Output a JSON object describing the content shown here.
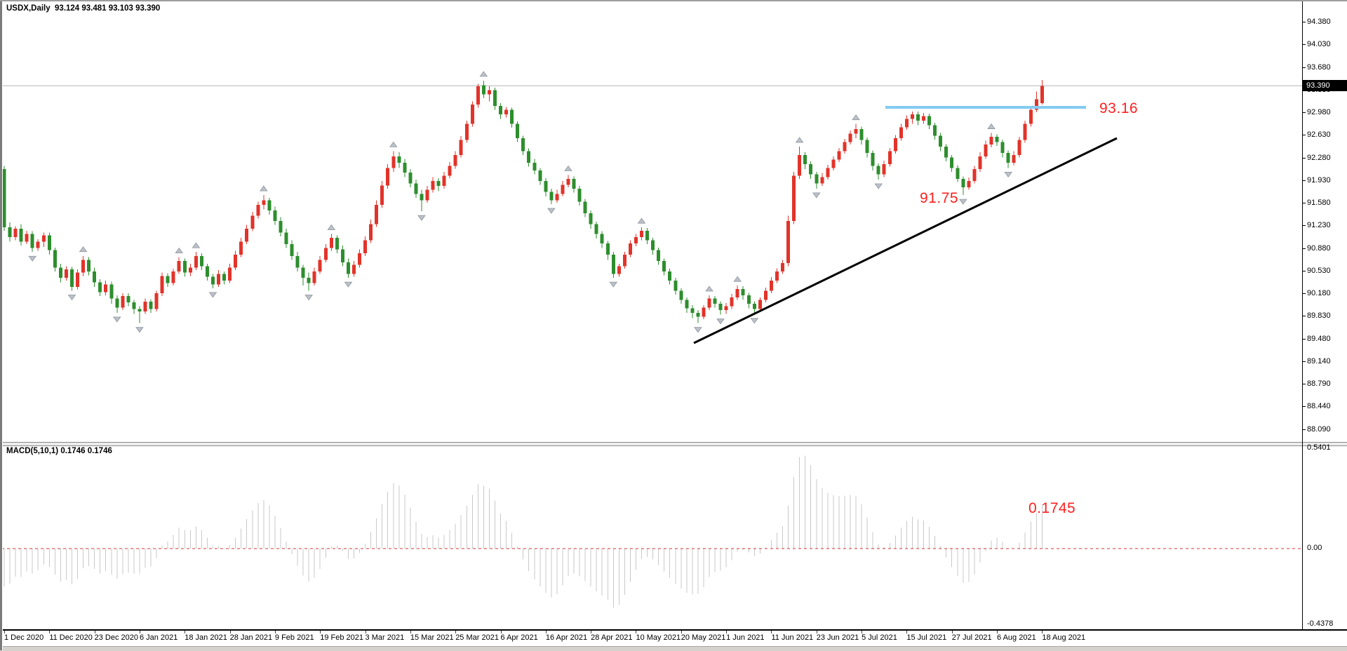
{
  "window": {
    "info_line": "USDX,Daily  93.124 93.481 93.103 93.390",
    "symbol": "USDX",
    "timeframe": "Daily"
  },
  "main_chart": {
    "ohlc_readout": {
      "open": "93.124",
      "high": "93.481",
      "low": "93.103",
      "close": "93.390"
    },
    "price_axis_labels": [
      "94.380",
      "94.030",
      "93.680",
      "93.330",
      "92.980",
      "92.630",
      "92.280",
      "91.930",
      "91.580",
      "91.230",
      "90.880",
      "90.530",
      "90.180",
      "89.830",
      "89.480",
      "89.140",
      "88.790",
      "88.440",
      "88.090"
    ],
    "current_price_label": "93.390",
    "annotations": {
      "resistance_label": "93.16",
      "support_label": "91.75"
    },
    "colors": {
      "bull_candle": "#e2332a",
      "bear_candle": "#2d8e2d",
      "resistance_line": "#84cbf1",
      "trendline": "#000000",
      "current_price_line": "#b6b6b6",
      "annotation_text": "#fe1f1f",
      "fractal_arrow": "#bcc1c9"
    }
  },
  "macd_panel": {
    "indicator_label": "MACD(5,10,1) 0.1746 0.1746",
    "value_annotation": "0.1745",
    "axis_labels": [
      "0.5401",
      "0.00",
      "-0.4378"
    ],
    "histogram_color": "#c9c9c9",
    "zero_line_color": "#d63434"
  },
  "chart_data": {
    "type": "candlestick",
    "title": "USDX Daily with MACD(5,10,1)",
    "symbol": "USDX",
    "timeframe": "Daily",
    "price_axis_range": [
      88.09,
      94.38
    ],
    "grid": "off",
    "last_candle_ohlc": [
      93.124,
      93.481,
      93.103,
      93.39
    ],
    "overlays": {
      "horizontal_resistance_level": 93.16,
      "support_annotation_value": 91.75,
      "current_price": 93.39,
      "ascending_trendline": "from below late-May 2021 swing low (~89.4) rising to ~92.7 by mid-Aug 2021"
    },
    "macd": {
      "params": [
        5,
        10,
        1
      ],
      "current_value": 0.1746,
      "signal_value": 0.1746,
      "panel_annotation": 0.1745,
      "axis_max": 0.5401,
      "axis_min": -0.4378,
      "derivation": "EMA5(close) - EMA10(close), histogram"
    },
    "date_ticks_every_n_candles": 8,
    "dates": [
      "1 Dec 2020",
      "11 Dec 2020",
      "23 Dec 2020",
      "6 Jan 2021",
      "18 Jan 2021",
      "28 Jan 2021",
      "9 Feb 2021",
      "19 Feb 2021",
      "3 Mar 2021",
      "15 Mar 2021",
      "25 Mar 2021",
      "6 Apr 2021",
      "16 Apr 2021",
      "28 Apr 2021",
      "10 May 2021",
      "20 May 2021",
      "1 Jun 2021",
      "11 Jun 2021",
      "23 Jun 2021",
      "5 Jul 2021",
      "15 Jul 2021",
      "27 Jul 2021",
      "6 Aug 2021",
      "18 Aug 2021"
    ],
    "candles_format": [
      "open",
      "high",
      "low",
      "close"
    ],
    "candles": [
      [
        92.1,
        92.15,
        91.15,
        91.2
      ],
      [
        91.2,
        91.28,
        90.98,
        91.05
      ],
      [
        91.05,
        91.22,
        91.0,
        91.18
      ],
      [
        91.18,
        91.25,
        90.92,
        90.98
      ],
      [
        90.98,
        91.15,
        90.94,
        91.1
      ],
      [
        91.1,
        91.14,
        90.82,
        90.88
      ],
      [
        90.88,
        91.02,
        90.84,
        90.98
      ],
      [
        90.98,
        91.12,
        90.9,
        91.08
      ],
      [
        91.08,
        91.12,
        90.78,
        90.85
      ],
      [
        90.85,
        90.89,
        90.52,
        90.58
      ],
      [
        90.58,
        90.64,
        90.35,
        90.42
      ],
      [
        90.42,
        90.6,
        90.38,
        90.55
      ],
      [
        90.55,
        90.59,
        90.22,
        90.28
      ],
      [
        90.28,
        90.55,
        90.24,
        90.5
      ],
      [
        90.5,
        90.76,
        90.45,
        90.7
      ],
      [
        90.7,
        90.74,
        90.46,
        90.52
      ],
      [
        90.52,
        90.58,
        90.28,
        90.35
      ],
      [
        90.35,
        90.4,
        90.14,
        90.2
      ],
      [
        90.2,
        90.38,
        90.15,
        90.32
      ],
      [
        90.32,
        90.36,
        90.02,
        90.1
      ],
      [
        90.1,
        90.15,
        89.88,
        89.96
      ],
      [
        89.96,
        90.18,
        89.92,
        90.14
      ],
      [
        90.14,
        90.18,
        89.98,
        90.04
      ],
      [
        90.04,
        90.08,
        89.86,
        89.94
      ],
      [
        89.94,
        89.98,
        89.72,
        89.9
      ],
      [
        89.9,
        90.1,
        89.86,
        90.05
      ],
      [
        90.05,
        90.09,
        89.88,
        89.94
      ],
      [
        89.94,
        90.22,
        89.9,
        90.18
      ],
      [
        90.18,
        90.5,
        90.14,
        90.45
      ],
      [
        90.45,
        90.49,
        90.28,
        90.34
      ],
      [
        90.34,
        90.56,
        90.3,
        90.52
      ],
      [
        90.52,
        90.74,
        90.48,
        90.68
      ],
      [
        90.68,
        90.72,
        90.44,
        90.5
      ],
      [
        90.5,
        90.64,
        90.45,
        90.58
      ],
      [
        90.58,
        90.82,
        90.54,
        90.76
      ],
      [
        90.76,
        90.8,
        90.54,
        90.6
      ],
      [
        90.6,
        90.64,
        90.38,
        90.44
      ],
      [
        90.44,
        90.48,
        90.26,
        90.32
      ],
      [
        90.32,
        90.54,
        90.28,
        90.48
      ],
      [
        90.48,
        90.52,
        90.32,
        90.38
      ],
      [
        90.38,
        90.64,
        90.34,
        90.58
      ],
      [
        90.58,
        90.84,
        90.54,
        90.78
      ],
      [
        90.78,
        91.04,
        90.74,
        90.98
      ],
      [
        90.98,
        91.24,
        90.94,
        91.18
      ],
      [
        91.18,
        91.44,
        91.14,
        91.38
      ],
      [
        91.38,
        91.6,
        91.34,
        91.55
      ],
      [
        91.55,
        91.7,
        91.48,
        91.62
      ],
      [
        91.62,
        91.66,
        91.4,
        91.46
      ],
      [
        91.46,
        91.52,
        91.24,
        91.3
      ],
      [
        91.3,
        91.36,
        91.06,
        91.12
      ],
      [
        91.12,
        91.18,
        90.88,
        90.94
      ],
      [
        90.94,
        91.0,
        90.7,
        90.76
      ],
      [
        90.76,
        90.82,
        90.52,
        90.58
      ],
      [
        90.58,
        90.62,
        90.3,
        90.42
      ],
      [
        90.42,
        90.5,
        90.22,
        90.34
      ],
      [
        90.34,
        90.58,
        90.3,
        90.52
      ],
      [
        90.52,
        90.76,
        90.48,
        90.7
      ],
      [
        90.7,
        90.94,
        90.66,
        90.88
      ],
      [
        90.88,
        91.1,
        90.84,
        91.04
      ],
      [
        91.04,
        91.08,
        90.8,
        90.86
      ],
      [
        90.86,
        90.92,
        90.6,
        90.66
      ],
      [
        90.66,
        90.72,
        90.42,
        90.48
      ],
      [
        90.48,
        90.68,
        90.44,
        90.62
      ],
      [
        90.62,
        90.86,
        90.58,
        90.8
      ],
      [
        90.8,
        91.06,
        90.76,
        91.0
      ],
      [
        91.0,
        91.32,
        90.96,
        91.25
      ],
      [
        91.25,
        91.62,
        91.21,
        91.55
      ],
      [
        91.55,
        91.92,
        91.5,
        91.85
      ],
      [
        91.85,
        92.18,
        91.8,
        92.12
      ],
      [
        92.12,
        92.38,
        92.06,
        92.3
      ],
      [
        92.3,
        92.36,
        92.12,
        92.2
      ],
      [
        92.2,
        92.26,
        91.98,
        92.05
      ],
      [
        92.05,
        92.1,
        91.82,
        91.88
      ],
      [
        91.88,
        91.94,
        91.66,
        91.72
      ],
      [
        91.72,
        91.78,
        91.45,
        91.62
      ],
      [
        91.62,
        91.84,
        91.58,
        91.78
      ],
      [
        91.78,
        91.98,
        91.74,
        91.92
      ],
      [
        91.92,
        91.96,
        91.76,
        91.84
      ],
      [
        91.84,
        92.06,
        91.8,
        92.0
      ],
      [
        92.0,
        92.21,
        91.96,
        92.15
      ],
      [
        92.15,
        92.38,
        92.11,
        92.32
      ],
      [
        92.32,
        92.61,
        92.28,
        92.55
      ],
      [
        92.55,
        92.85,
        92.51,
        92.8
      ],
      [
        92.8,
        93.15,
        92.76,
        93.1
      ],
      [
        93.1,
        93.42,
        93.05,
        93.38
      ],
      [
        93.4,
        93.47,
        93.2,
        93.26
      ],
      [
        93.26,
        93.38,
        93.15,
        93.32
      ],
      [
        93.32,
        93.36,
        93.02,
        93.08
      ],
      [
        93.08,
        93.12,
        92.88,
        92.95
      ],
      [
        92.95,
        93.06,
        92.9,
        93.02
      ],
      [
        93.02,
        93.05,
        92.74,
        92.8
      ],
      [
        92.8,
        92.84,
        92.52,
        92.58
      ],
      [
        92.58,
        92.62,
        92.32,
        92.38
      ],
      [
        92.38,
        92.42,
        92.14,
        92.2
      ],
      [
        92.2,
        92.26,
        92.02,
        92.08
      ],
      [
        92.08,
        92.12,
        91.86,
        91.92
      ],
      [
        91.92,
        91.96,
        91.68,
        91.75
      ],
      [
        91.75,
        91.8,
        91.56,
        91.62
      ],
      [
        91.62,
        91.78,
        91.58,
        91.72
      ],
      [
        91.72,
        91.92,
        91.68,
        91.86
      ],
      [
        91.86,
        92.01,
        91.82,
        91.95
      ],
      [
        91.95,
        91.99,
        91.74,
        91.8
      ],
      [
        91.8,
        91.84,
        91.54,
        91.6
      ],
      [
        91.6,
        91.64,
        91.36,
        91.42
      ],
      [
        91.42,
        91.46,
        91.18,
        91.25
      ],
      [
        91.25,
        91.29,
        91.03,
        91.1
      ],
      [
        91.1,
        91.14,
        90.88,
        90.95
      ],
      [
        90.95,
        90.99,
        90.7,
        90.78
      ],
      [
        90.78,
        90.82,
        90.42,
        90.48
      ],
      [
        90.48,
        90.64,
        90.44,
        90.6
      ],
      [
        90.6,
        90.82,
        90.56,
        90.78
      ],
      [
        90.78,
        91.0,
        90.74,
        90.95
      ],
      [
        90.95,
        91.1,
        90.91,
        91.05
      ],
      [
        91.05,
        91.2,
        91.0,
        91.15
      ],
      [
        91.15,
        91.19,
        90.94,
        91.0
      ],
      [
        91.0,
        91.04,
        90.78,
        90.85
      ],
      [
        90.85,
        90.89,
        90.62,
        90.68
      ],
      [
        90.68,
        90.72,
        90.46,
        90.52
      ],
      [
        90.52,
        90.56,
        90.32,
        90.38
      ],
      [
        90.38,
        90.42,
        90.16,
        90.22
      ],
      [
        90.22,
        90.26,
        90.02,
        90.08
      ],
      [
        90.08,
        90.12,
        89.88,
        89.95
      ],
      [
        89.95,
        90.0,
        89.8,
        89.88
      ],
      [
        89.88,
        89.92,
        89.72,
        89.82
      ],
      [
        89.82,
        90.0,
        89.78,
        89.96
      ],
      [
        89.96,
        90.15,
        89.92,
        90.1
      ],
      [
        90.1,
        90.14,
        89.96,
        90.02
      ],
      [
        90.02,
        90.06,
        89.85,
        89.92
      ],
      [
        89.92,
        90.03,
        89.86,
        89.98
      ],
      [
        89.98,
        90.17,
        89.94,
        90.12
      ],
      [
        90.12,
        90.3,
        90.08,
        90.25
      ],
      [
        90.25,
        90.29,
        90.08,
        90.15
      ],
      [
        90.15,
        90.19,
        89.95,
        90.02
      ],
      [
        90.02,
        90.06,
        89.86,
        89.94
      ],
      [
        89.94,
        90.12,
        89.9,
        90.08
      ],
      [
        90.08,
        90.27,
        90.04,
        90.22
      ],
      [
        90.22,
        90.43,
        90.18,
        90.38
      ],
      [
        90.38,
        90.57,
        90.34,
        90.52
      ],
      [
        90.52,
        90.7,
        90.48,
        90.65
      ],
      [
        90.65,
        91.38,
        90.6,
        91.3
      ],
      [
        91.3,
        92.06,
        91.25,
        92.0
      ],
      [
        92.0,
        92.45,
        91.95,
        92.32
      ],
      [
        92.32,
        92.36,
        92.1,
        92.18
      ],
      [
        92.18,
        92.22,
        91.95,
        92.02
      ],
      [
        92.02,
        92.06,
        91.8,
        91.88
      ],
      [
        91.88,
        92.04,
        91.84,
        91.98
      ],
      [
        91.98,
        92.17,
        91.94,
        92.12
      ],
      [
        92.12,
        92.3,
        92.08,
        92.25
      ],
      [
        92.25,
        92.43,
        92.21,
        92.38
      ],
      [
        92.38,
        92.57,
        92.34,
        92.52
      ],
      [
        92.52,
        92.7,
        92.48,
        92.65
      ],
      [
        92.65,
        92.8,
        92.58,
        92.72
      ],
      [
        92.72,
        92.76,
        92.48,
        92.55
      ],
      [
        92.55,
        92.59,
        92.28,
        92.35
      ],
      [
        92.35,
        92.39,
        92.08,
        92.15
      ],
      [
        92.15,
        92.19,
        91.94,
        92.02
      ],
      [
        92.02,
        92.23,
        91.98,
        92.18
      ],
      [
        92.18,
        92.43,
        92.14,
        92.38
      ],
      [
        92.38,
        92.63,
        92.34,
        92.58
      ],
      [
        92.58,
        92.8,
        92.54,
        92.75
      ],
      [
        92.75,
        92.93,
        92.71,
        92.88
      ],
      [
        92.88,
        92.99,
        92.8,
        92.95
      ],
      [
        92.95,
        92.99,
        92.78,
        92.85
      ],
      [
        92.85,
        92.97,
        92.8,
        92.92
      ],
      [
        92.92,
        92.96,
        92.72,
        92.78
      ],
      [
        92.78,
        92.82,
        92.56,
        92.62
      ],
      [
        92.62,
        92.66,
        92.38,
        92.45
      ],
      [
        92.45,
        92.49,
        92.22,
        92.28
      ],
      [
        92.28,
        92.32,
        92.06,
        92.12
      ],
      [
        92.12,
        92.16,
        91.9,
        91.95
      ],
      [
        91.95,
        91.99,
        91.7,
        91.82
      ],
      [
        91.82,
        91.97,
        91.78,
        91.92
      ],
      [
        91.92,
        92.15,
        91.88,
        92.1
      ],
      [
        92.1,
        92.36,
        92.06,
        92.3
      ],
      [
        92.3,
        92.54,
        92.26,
        92.48
      ],
      [
        92.48,
        92.66,
        92.44,
        92.6
      ],
      [
        92.6,
        92.64,
        92.46,
        92.52
      ],
      [
        92.52,
        92.56,
        92.28,
        92.35
      ],
      [
        92.35,
        92.39,
        92.12,
        92.2
      ],
      [
        92.2,
        92.38,
        92.16,
        92.32
      ],
      [
        92.32,
        92.6,
        92.28,
        92.55
      ],
      [
        92.55,
        92.85,
        92.51,
        92.8
      ],
      [
        92.8,
        93.08,
        92.76,
        93.02
      ],
      [
        93.02,
        93.3,
        92.98,
        93.18
      ],
      [
        93.12,
        93.48,
        93.1,
        93.39
      ]
    ]
  }
}
